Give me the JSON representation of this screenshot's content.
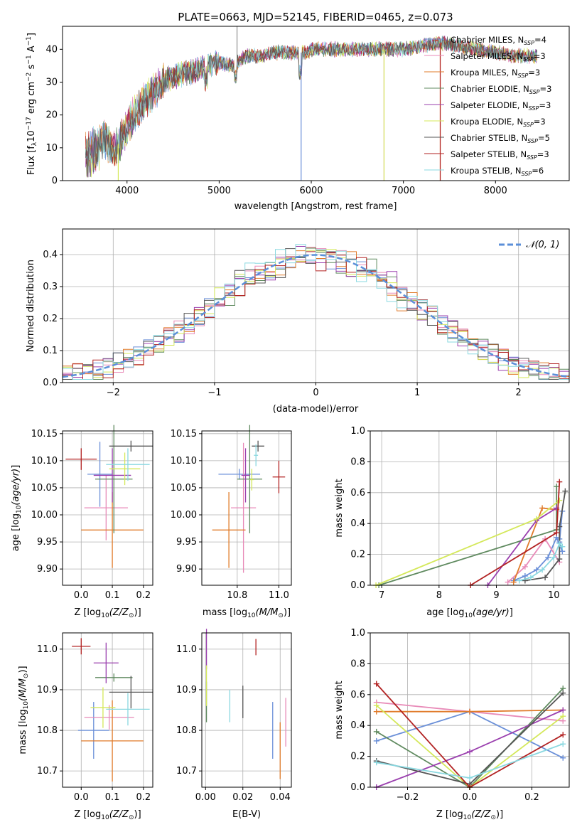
{
  "spectrum_panel": {
    "title": "PLATE=0663, MJD=52145, FIBERID=0465, z=0.073",
    "xlabel": "wavelength [Angstrom, rest frame]",
    "ylabel_parts": [
      "Flux [f",
      "λ",
      "10",
      "−17",
      " erg cm",
      "−2",
      " s",
      "−1",
      " A",
      "−1",
      "]"
    ],
    "xticks": [
      "4000",
      "5000",
      "6000",
      "7000",
      "8000"
    ],
    "yticks": [
      "0",
      "10",
      "20",
      "30",
      "40"
    ]
  },
  "residual_panel": {
    "xlabel": "(data-model)/error",
    "ylabel": "Normed distribution",
    "legend_label": "𝒩(0, 1)",
    "xticks": [
      "−2",
      "−1",
      "0",
      "1",
      "2"
    ],
    "yticks": [
      "0.0",
      "0.1",
      "0.2",
      "0.3",
      "0.4"
    ]
  },
  "legend": {
    "entries": [
      {
        "main": "Chabrier MILES, N",
        "sub": "SSP",
        "tail": "=4"
      },
      {
        "main": "Salpeter MILES, N",
        "sub": "SSP",
        "tail": "=3"
      },
      {
        "main": "Kroupa MILES, N",
        "sub": "SSP",
        "tail": "=3"
      },
      {
        "main": "Chabrier ELODIE, N",
        "sub": "SSP",
        "tail": "=3"
      },
      {
        "main": "Salpeter ELODIE, N",
        "sub": "SSP",
        "tail": "=3"
      },
      {
        "main": "Kroupa ELODIE, N",
        "sub": "SSP",
        "tail": "=3"
      },
      {
        "main": "Chabrier STELIB, N",
        "sub": "SSP",
        "tail": "=5"
      },
      {
        "main": "Salpeter STELIB, N",
        "sub": "SSP",
        "tail": "=3"
      },
      {
        "main": "Kroupa STELIB, N",
        "sub": "SSP",
        "tail": "=6"
      }
    ]
  },
  "small_panels": {
    "age_vs_z": {
      "xlabel": "Z [log10(Z/Z⊙)]",
      "ylabel": "age  [log10(age/yr)]",
      "xticks": [
        "0.0",
        "0.1",
        "0.2"
      ],
      "yticks": [
        "9.90",
        "9.95",
        "10.00",
        "10.05",
        "10.10",
        "10.15"
      ]
    },
    "age_vs_mass": {
      "xlabel": "mass [log10(M/M⊙)]",
      "xticks": [
        "10.8",
        "11.0"
      ],
      "yticks": [
        "9.90",
        "9.95",
        "10.00",
        "10.05",
        "10.10",
        "10.15"
      ]
    },
    "mw_vs_age": {
      "xlabel": "age  [log10(age/yr)]",
      "ylabel": "mass weight",
      "xticks": [
        "7",
        "8",
        "9",
        "10"
      ],
      "yticks": [
        "0.0",
        "0.2",
        "0.4",
        "0.6",
        "0.8",
        "1.0"
      ]
    },
    "mass_vs_z": {
      "xlabel": "Z [log10(Z/Z⊙)]",
      "ylabel": "mass [log10(M/M⊙)]",
      "xticks": [
        "0.0",
        "0.1",
        "0.2"
      ],
      "yticks": [
        "10.7",
        "10.8",
        "10.9",
        "11.0"
      ]
    },
    "mass_vs_ebv": {
      "xlabel": "E(B-V)",
      "xticks": [
        "0.00",
        "0.02",
        "0.04"
      ],
      "yticks": [
        "10.7",
        "10.8",
        "10.9",
        "11.0"
      ]
    },
    "mw_vs_z": {
      "xlabel": "Z [log10(Z/Z⊙)]",
      "ylabel": "mass weight",
      "xticks": [
        "−0.2",
        "0.0",
        "0.2"
      ],
      "yticks": [
        "0.0",
        "0.2",
        "0.4",
        "0.6",
        "0.8",
        "1.0"
      ]
    }
  },
  "chart_data": {
    "type": "multi-panel",
    "series_colors": [
      "#6a8fd8",
      "#e88ab8",
      "#e07b2a",
      "#5f8a5f",
      "#9a3fae",
      "#d4e85a",
      "#555555",
      "#b22222",
      "#8ad8e0"
    ],
    "spectrum": {
      "type": "line",
      "xlim": [
        3300,
        8800
      ],
      "ylim": [
        0,
        47
      ],
      "anchors_x": [
        3550,
        3650,
        3750,
        3850,
        3950,
        4050,
        4150,
        4250,
        4350,
        4450,
        4550,
        4700,
        4850,
        5000,
        5150,
        5300,
        5450,
        5600,
        5750,
        5900,
        6050,
        6200,
        6400,
        6600,
        6800,
        7000,
        7200,
        7400,
        7600,
        7800,
        8000,
        8200,
        8450
      ],
      "anchors_y": [
        9,
        11,
        13,
        9,
        13,
        19,
        23,
        26,
        29,
        31,
        32,
        33,
        35,
        36,
        35,
        38,
        38,
        39,
        39,
        39,
        40,
        40,
        40,
        40,
        40,
        40,
        41,
        42,
        41,
        40,
        39,
        38,
        38
      ],
      "dropouts": [
        {
          "series": 0,
          "x": 5890
        },
        {
          "series": 1,
          "x": 6790
        },
        {
          "series": 5,
          "x": 3905
        },
        {
          "series": 5,
          "x": 6790
        },
        {
          "series": 2,
          "x": 7400
        },
        {
          "series": 7,
          "x": 7400
        }
      ]
    },
    "residuals": {
      "type": "histogram",
      "xlim": [
        -2.5,
        2.5
      ],
      "ylim": [
        0,
        0.48
      ],
      "bin_width": 0.1,
      "reference_curve": "normal(0,1)"
    },
    "age_vs_z": {
      "type": "errorbar",
      "xlim": [
        -0.06,
        0.23
      ],
      "ylim": [
        9.87,
        10.155
      ],
      "points": [
        {
          "s": 0,
          "x": 0.06,
          "y": 10.075,
          "xerr": 0.04,
          "yerr": 0.06
        },
        {
          "s": 1,
          "x": 0.08,
          "y": 10.013,
          "xerr": 0.07,
          "yerr": 0.06
        },
        {
          "s": 2,
          "x": 0.1,
          "y": 9.972,
          "xerr": 0.1,
          "yerr": 0.07
        },
        {
          "s": 3,
          "x": 0.105,
          "y": 10.066,
          "xerr": 0.06,
          "yerr": 0.1
        },
        {
          "s": 4,
          "x": 0.1,
          "y": 10.073,
          "xerr": 0.06,
          "yerr": 0.05
        },
        {
          "s": 5,
          "x": 0.14,
          "y": 10.085,
          "xerr": 0.05,
          "yerr": 0.03
        },
        {
          "s": 6,
          "x": 0.16,
          "y": 10.127,
          "xerr": 0.07,
          "yerr": 0.01
        },
        {
          "s": 7,
          "x": 0.0,
          "y": 10.103,
          "xerr": 0.05,
          "yerr": 0.02
        },
        {
          "s": 8,
          "x": 0.15,
          "y": 10.093,
          "xerr": 0.07,
          "yerr": 0.03
        }
      ]
    },
    "age_vs_mass": {
      "type": "errorbar",
      "xlim": [
        10.63,
        11.06
      ],
      "ylim": [
        9.87,
        10.155
      ],
      "points": [
        {
          "s": 0,
          "x": 10.81,
          "y": 10.075,
          "xerr": 0.1,
          "yerr": 0.01
        },
        {
          "s": 1,
          "x": 10.83,
          "y": 10.013,
          "xerr": 0.06,
          "yerr": 0.12
        },
        {
          "s": 2,
          "x": 10.76,
          "y": 9.972,
          "xerr": 0.08,
          "yerr": 0.07
        },
        {
          "s": 3,
          "x": 10.86,
          "y": 10.066,
          "xerr": 0.06,
          "yerr": 0.1
        },
        {
          "s": 4,
          "x": 10.84,
          "y": 10.073,
          "xerr": 0.02,
          "yerr": 0.05
        },
        {
          "s": 5,
          "x": 10.87,
          "y": 10.065,
          "xerr": 0.01,
          "yerr": 0.02
        },
        {
          "s": 6,
          "x": 10.9,
          "y": 10.127,
          "xerr": 0.03,
          "yerr": 0.01
        },
        {
          "s": 7,
          "x": 11.0,
          "y": 10.07,
          "xerr": 0.03,
          "yerr": 0.03
        },
        {
          "s": 8,
          "x": 10.89,
          "y": 10.11,
          "xerr": 0.01,
          "yerr": 0.02
        }
      ]
    },
    "mw_vs_age": {
      "type": "line",
      "xlim": [
        6.8,
        10.27
      ],
      "ylim": [
        0,
        1
      ],
      "series": [
        {
          "s": 0,
          "x": [
            9.3,
            9.5,
            9.7,
            9.9,
            10.05,
            10.15,
            10.1,
            10.15,
            10.1
          ],
          "y": [
            0.03,
            0.06,
            0.1,
            0.18,
            0.31,
            0.22,
            0.28,
            0.48,
            0.3
          ]
        },
        {
          "s": 1,
          "x": [
            9.2,
            9.5,
            9.85,
            10.1
          ],
          "y": [
            0.02,
            0.12,
            0.3,
            0.15
          ]
        },
        {
          "s": 2,
          "x": [
            9.3,
            9.8,
            10.05
          ],
          "y": [
            0.02,
            0.5,
            0.49
          ]
        },
        {
          "s": 3,
          "x": [
            6.95,
            10.05,
            10.05
          ],
          "y": [
            0.0,
            0.36,
            0.64
          ]
        },
        {
          "s": 4,
          "x": [
            8.85,
            9.7,
            10.05
          ],
          "y": [
            0.0,
            0.42,
            0.5
          ]
        },
        {
          "s": 5,
          "x": [
            6.9,
            9.7,
            10.1
          ],
          "y": [
            0.0,
            0.43,
            0.55
          ]
        },
        {
          "s": 6,
          "x": [
            9.5,
            9.85,
            10.1,
            10.1,
            10.2
          ],
          "y": [
            0.03,
            0.05,
            0.17,
            0.38,
            0.61
          ]
        },
        {
          "s": 7,
          "x": [
            8.55,
            10.05,
            10.1
          ],
          "y": [
            0.0,
            0.34,
            0.67
          ]
        },
        {
          "s": 8,
          "x": [
            9.4,
            9.6,
            9.8,
            10.0,
            10.1,
            10.15
          ],
          "y": [
            0.03,
            0.05,
            0.1,
            0.18,
            0.27,
            0.25
          ]
        }
      ]
    },
    "mass_vs_z": {
      "type": "errorbar",
      "xlim": [
        -0.06,
        0.23
      ],
      "ylim": [
        10.66,
        11.04
      ],
      "points": [
        {
          "s": 0,
          "x": 0.04,
          "y": 10.8,
          "xerr": 0.05,
          "yerr": 0.07
        },
        {
          "s": 1,
          "x": 0.09,
          "y": 10.832,
          "xerr": 0.08,
          "yerr": 0.03
        },
        {
          "s": 2,
          "x": 0.1,
          "y": 10.774,
          "xerr": 0.1,
          "yerr": 0.1
        },
        {
          "s": 3,
          "x": 0.105,
          "y": 10.93,
          "xerr": 0.06,
          "yerr": 0.01
        },
        {
          "s": 4,
          "x": 0.08,
          "y": 10.966,
          "xerr": 0.04,
          "yerr": 0.05
        },
        {
          "s": 5,
          "x": 0.07,
          "y": 10.856,
          "xerr": 0.04,
          "yerr": 0.05
        },
        {
          "s": 6,
          "x": 0.16,
          "y": 10.894,
          "xerr": 0.07,
          "yerr": 0.04
        },
        {
          "s": 7,
          "x": 0.0,
          "y": 11.007,
          "xerr": 0.03,
          "yerr": 0.02
        },
        {
          "s": 8,
          "x": 0.15,
          "y": 10.852,
          "xerr": 0.07,
          "yerr": 0.04
        }
      ]
    },
    "mass_vs_ebv": {
      "type": "errorbar",
      "xlim": [
        -0.002,
        0.046
      ],
      "ylim": [
        10.66,
        11.04
      ],
      "points": [
        {
          "s": 0,
          "x": 0.036,
          "y": 10.8,
          "yerr": 0.07
        },
        {
          "s": 1,
          "x": 0.043,
          "y": 10.82,
          "yerr": 0.06
        },
        {
          "s": 2,
          "x": 0.04,
          "y": 10.75,
          "yerr": 0.07
        },
        {
          "s": 3,
          "x": 0.0005,
          "y": 10.87,
          "yerr": 0.05
        },
        {
          "s": 4,
          "x": 0.0005,
          "y": 11.0,
          "yerr": 0.05
        },
        {
          "s": 5,
          "x": 0.0005,
          "y": 10.91,
          "yerr": 0.05
        },
        {
          "s": 6,
          "x": 0.02,
          "y": 10.87,
          "yerr": 0.04
        },
        {
          "s": 7,
          "x": 0.027,
          "y": 11.005,
          "yerr": 0.02
        },
        {
          "s": 8,
          "x": 0.013,
          "y": 10.86,
          "yerr": 0.04
        }
      ]
    },
    "mw_vs_z": {
      "type": "line",
      "xlim": [
        -0.32,
        0.32
      ],
      "ylim": [
        0,
        1
      ],
      "series": [
        {
          "s": 0,
          "x": [
            -0.3,
            0.0,
            0.3
          ],
          "y": [
            0.3,
            0.49,
            0.19
          ]
        },
        {
          "s": 1,
          "x": [
            -0.3,
            0.0,
            0.3
          ],
          "y": [
            0.55,
            0.49,
            0.43
          ]
        },
        {
          "s": 2,
          "x": [
            -0.3,
            0.0,
            0.3
          ],
          "y": [
            0.49,
            0.49,
            0.5
          ]
        },
        {
          "s": 3,
          "x": [
            -0.3,
            0.0,
            0.3
          ],
          "y": [
            0.36,
            0.0,
            0.64
          ]
        },
        {
          "s": 4,
          "x": [
            -0.3,
            0.0,
            0.3
          ],
          "y": [
            0.0,
            0.23,
            0.5
          ]
        },
        {
          "s": 5,
          "x": [
            -0.3,
            0.0,
            0.3
          ],
          "y": [
            0.53,
            0.0,
            0.46
          ]
        },
        {
          "s": 6,
          "x": [
            -0.3,
            0.0,
            0.3
          ],
          "y": [
            0.17,
            0.02,
            0.61
          ]
        },
        {
          "s": 7,
          "x": [
            -0.3,
            0.0,
            0.3
          ],
          "y": [
            0.67,
            0.0,
            0.34
          ]
        },
        {
          "s": 8,
          "x": [
            -0.3,
            0.0,
            0.3
          ],
          "y": [
            0.16,
            0.06,
            0.28
          ]
        }
      ]
    }
  }
}
